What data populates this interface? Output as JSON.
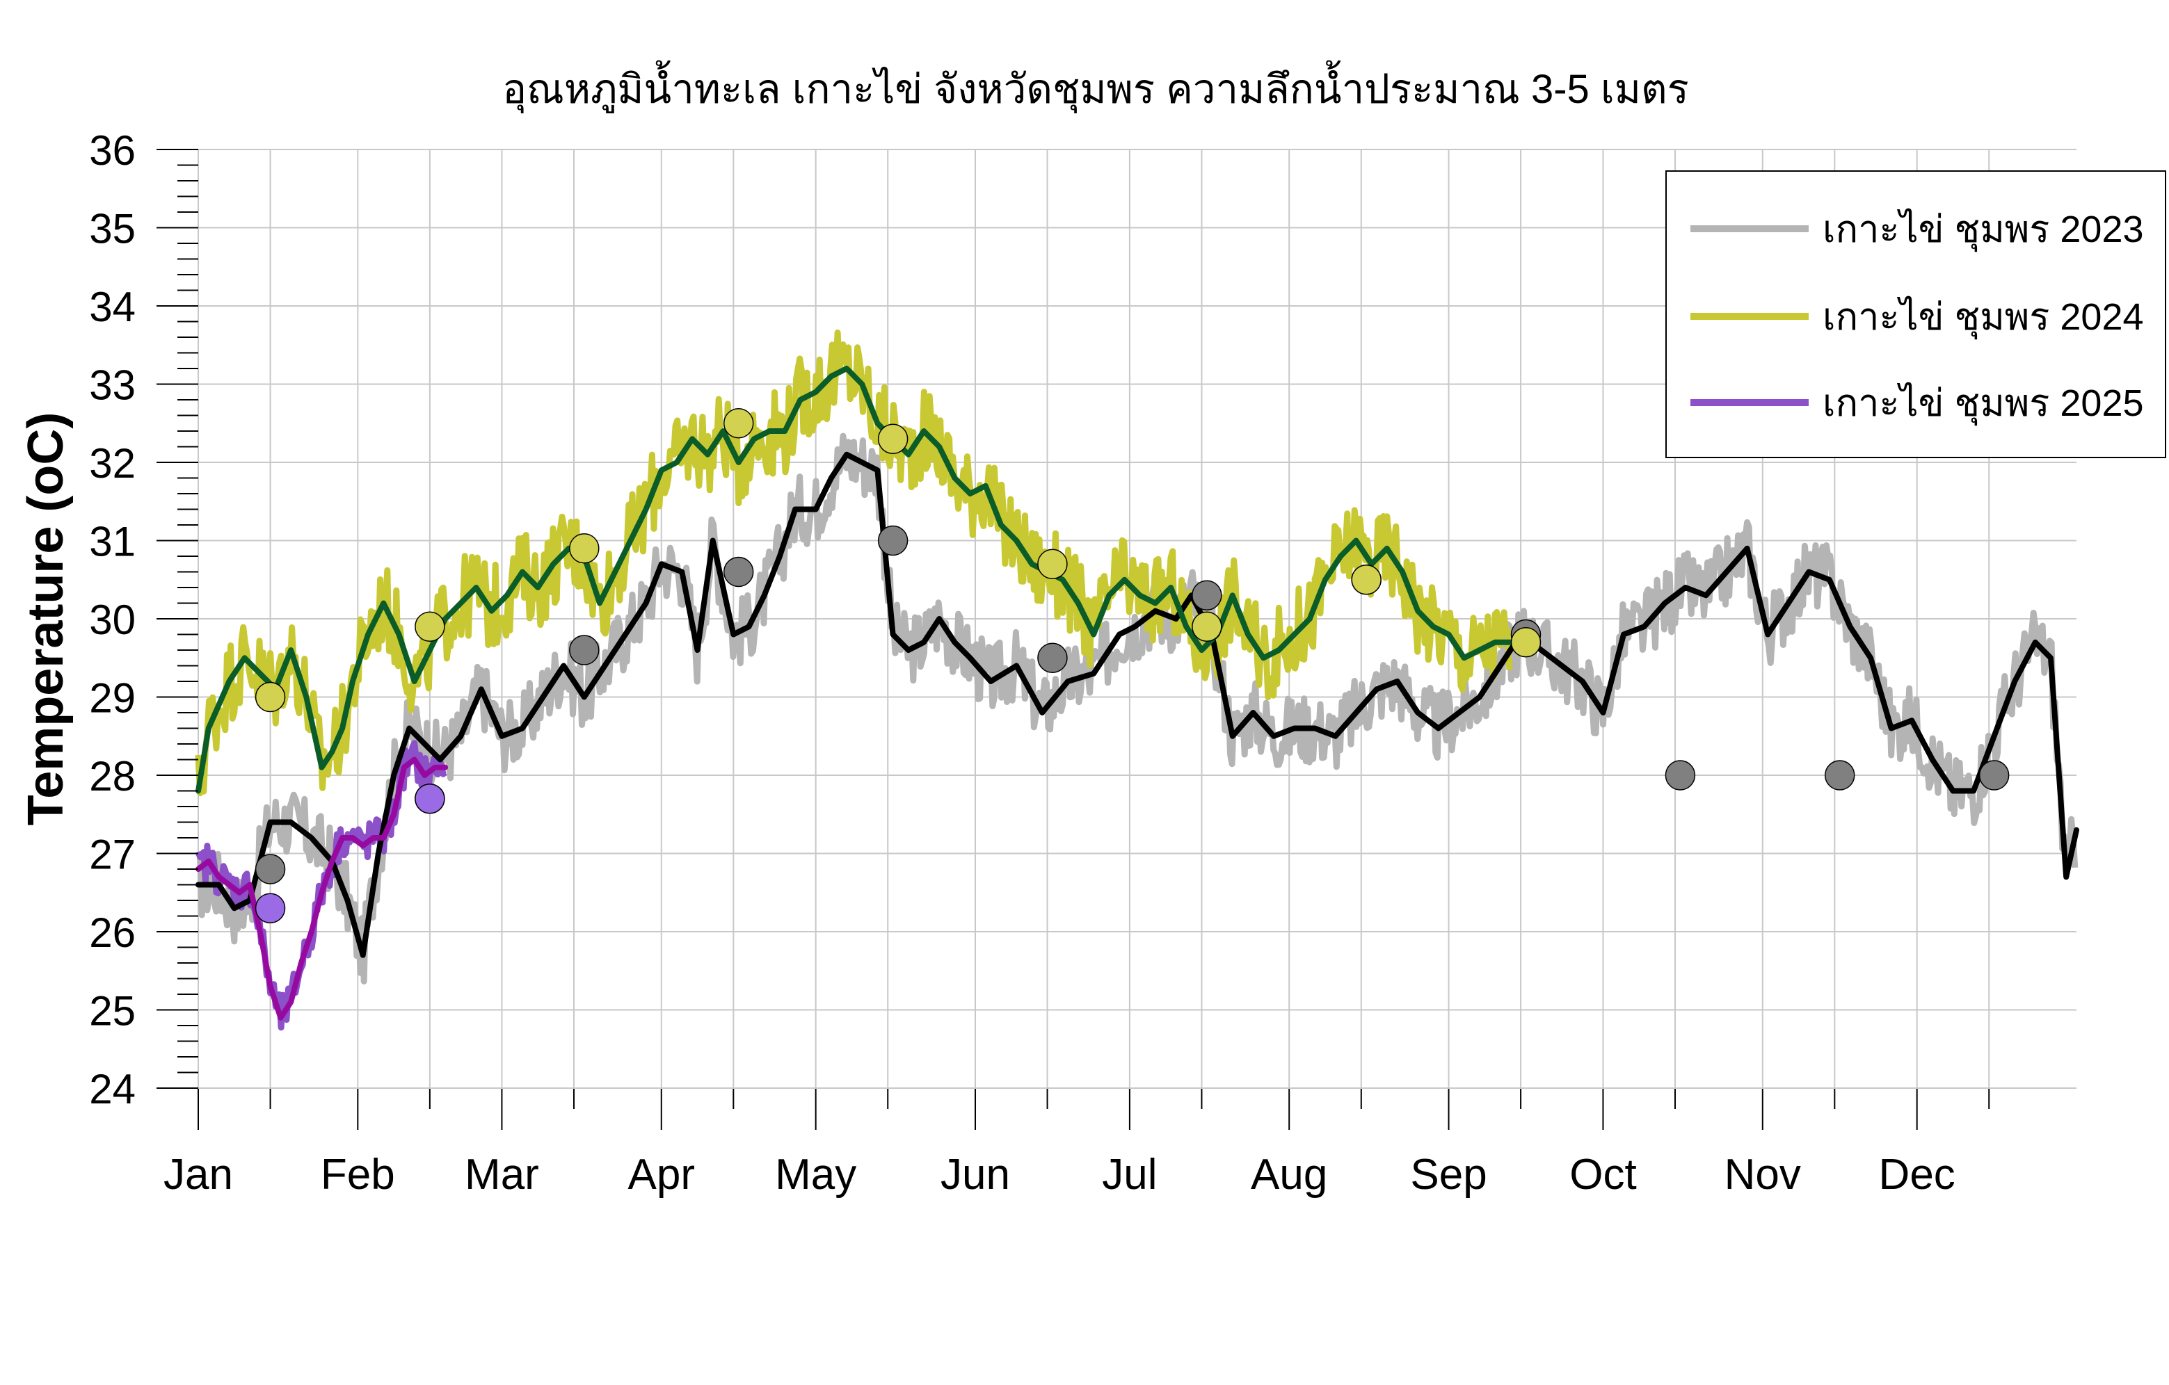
{
  "chart_data": {
    "type": "line",
    "title": "อุณหภูมิน้ำทะเล เกาะไข่ จังหวัดชุมพร ความลึกน้ำประมาณ 3-5 เมตร",
    "xlabel": "",
    "ylabel": "Temperature (oC)",
    "ylim": [
      24,
      36
    ],
    "yticks": [
      24,
      25,
      26,
      27,
      28,
      29,
      30,
      31,
      32,
      33,
      34,
      35,
      36
    ],
    "xlim": [
      1,
      366
    ],
    "month_labels": [
      "Jan",
      "Feb",
      "Mar",
      "Apr",
      "May",
      "Jun",
      "Jul",
      "Aug",
      "Sep",
      "Oct",
      "Nov",
      "Dec"
    ],
    "month_starts": [
      1,
      32,
      60,
      91,
      121,
      152,
      182,
      213,
      244,
      274,
      305,
      335
    ],
    "grid": true,
    "legend_position": "top-right",
    "series": [
      {
        "name": "เกาะไข่ ชุมพร 2023",
        "color": "#b4b4b4",
        "mean_color": "#000000",
        "x": [
          1,
          5,
          8,
          11,
          15,
          19,
          23,
          27,
          30,
          33,
          36,
          39,
          42,
          45,
          48,
          52,
          56,
          60,
          64,
          68,
          72,
          76,
          80,
          84,
          88,
          91,
          95,
          98,
          101,
          105,
          108,
          111,
          114,
          117,
          121,
          124,
          127,
          130,
          133,
          136,
          139,
          142,
          145,
          148,
          151,
          155,
          160,
          165,
          170,
          175,
          180,
          183,
          187,
          191,
          194,
          198,
          202,
          206,
          210,
          214,
          218,
          222,
          226,
          230,
          234,
          238,
          242,
          246,
          250,
          254,
          258,
          262,
          266,
          270,
          274,
          278,
          282,
          286,
          290,
          294,
          298,
          302,
          306,
          310,
          314,
          318,
          322,
          326,
          330,
          334,
          338,
          342,
          346,
          350,
          354,
          358,
          361,
          364,
          366
        ],
        "values": [
          26.6,
          26.6,
          26.3,
          26.4,
          27.4,
          27.4,
          27.2,
          26.9,
          26.4,
          25.7,
          27.0,
          28.0,
          28.6,
          28.4,
          28.2,
          28.5,
          29.1,
          28.5,
          28.6,
          29.0,
          29.4,
          29.0,
          29.4,
          29.8,
          30.2,
          30.7,
          30.6,
          29.6,
          31.0,
          29.8,
          29.9,
          30.3,
          30.8,
          31.4,
          31.4,
          31.8,
          32.1,
          32.0,
          31.9,
          29.8,
          29.6,
          29.7,
          30.0,
          29.7,
          29.5,
          29.2,
          29.4,
          28.8,
          29.2,
          29.3,
          29.8,
          29.9,
          30.1,
          30.0,
          30.3,
          29.8,
          28.5,
          28.8,
          28.5,
          28.6,
          28.6,
          28.5,
          28.8,
          29.1,
          29.2,
          28.8,
          28.6,
          28.8,
          29.0,
          29.4,
          29.8,
          29.6,
          29.4,
          29.2,
          28.8,
          29.8,
          29.9,
          30.2,
          30.4,
          30.3,
          30.6,
          30.9,
          29.8,
          30.2,
          30.6,
          30.5,
          29.9,
          29.5,
          28.6,
          28.7,
          28.2,
          27.8,
          27.8,
          28.5,
          29.2,
          29.7,
          29.5,
          26.7,
          27.3
        ]
      },
      {
        "name": "เกาะไข่ ชุมพร 2024",
        "color": "#c8c832",
        "mean_color": "#0a5c28",
        "x": [
          1,
          3,
          5,
          7,
          10,
          13,
          16,
          19,
          22,
          25,
          27,
          29,
          31,
          34,
          37,
          40,
          43,
          46,
          49,
          52,
          55,
          58,
          61,
          64,
          67,
          70,
          73,
          76,
          79,
          82,
          85,
          88,
          91,
          94,
          97,
          100,
          103,
          106,
          109,
          112,
          115,
          118,
          121,
          124,
          127,
          130,
          133,
          136,
          139,
          142,
          145,
          148,
          151,
          154,
          157,
          160,
          163,
          166,
          169,
          172,
          175,
          178,
          181,
          184,
          187,
          190,
          193,
          196,
          199,
          202,
          205,
          208,
          211,
          214,
          217,
          220,
          223,
          226,
          229,
          232,
          235,
          238,
          241,
          244,
          247,
          250,
          253,
          256
        ],
        "values": [
          27.8,
          28.6,
          28.9,
          29.2,
          29.5,
          29.3,
          29.1,
          29.6,
          29.0,
          28.1,
          28.3,
          28.6,
          29.2,
          29.8,
          30.2,
          29.8,
          29.2,
          29.6,
          30.0,
          30.2,
          30.4,
          30.1,
          30.3,
          30.6,
          30.4,
          30.7,
          30.9,
          30.8,
          30.2,
          30.6,
          31.0,
          31.4,
          31.9,
          32.0,
          32.3,
          32.1,
          32.4,
          32.0,
          32.3,
          32.4,
          32.4,
          32.8,
          32.9,
          33.1,
          33.2,
          33.0,
          32.5,
          32.3,
          32.1,
          32.4,
          32.2,
          31.8,
          31.6,
          31.7,
          31.2,
          31.0,
          30.7,
          30.6,
          30.5,
          30.2,
          29.8,
          30.3,
          30.5,
          30.3,
          30.2,
          30.4,
          29.9,
          29.6,
          29.8,
          30.3,
          29.8,
          29.5,
          29.6,
          29.8,
          30.0,
          30.5,
          30.8,
          31.0,
          30.7,
          30.9,
          30.6,
          30.1,
          29.9,
          29.8,
          29.5,
          29.6,
          29.7,
          29.7
        ]
      },
      {
        "name": "เกาะไข่ ชุมพร 2025",
        "color": "#8c50c8",
        "mean_color": "#960aa0",
        "x": [
          1,
          3,
          5,
          7,
          9,
          11,
          13,
          15,
          17,
          19,
          21,
          23,
          25,
          27,
          29,
          31,
          33,
          35,
          37,
          39,
          41,
          43,
          45,
          47,
          49
        ],
        "values": [
          26.8,
          26.9,
          26.7,
          26.6,
          26.5,
          26.6,
          26.0,
          25.3,
          24.9,
          25.1,
          25.6,
          26.0,
          26.5,
          26.9,
          27.2,
          27.2,
          27.1,
          27.2,
          27.2,
          27.5,
          28.1,
          28.2,
          28.0,
          28.1,
          28.1
        ]
      }
    ],
    "monthly_means": [
      {
        "series": "เกาะไข่ ชุมพร 2023",
        "color": "#808080",
        "x": [
          15,
          46,
          76,
          106,
          136,
          167,
          197,
          228,
          259,
          289,
          320,
          350
        ],
        "values": [
          26.8,
          27.7,
          29.6,
          30.6,
          31.0,
          29.5,
          30.3,
          30.5,
          29.8,
          28.0,
          28.0,
          28.0
        ]
      },
      {
        "series": "เกาะไข่ ชุมพร 2024",
        "color": "#d2d250",
        "x": [
          15,
          46,
          76,
          106,
          136,
          167,
          197,
          228,
          259
        ],
        "values": [
          29.0,
          29.9,
          30.9,
          32.5,
          32.3,
          30.7,
          29.9,
          30.5,
          29.7
        ]
      },
      {
        "series": "เกาะไข่ ชุมพร 2025",
        "color": "#9b6be6",
        "x": [
          15,
          46
        ],
        "values": [
          26.3,
          27.7
        ]
      }
    ]
  }
}
